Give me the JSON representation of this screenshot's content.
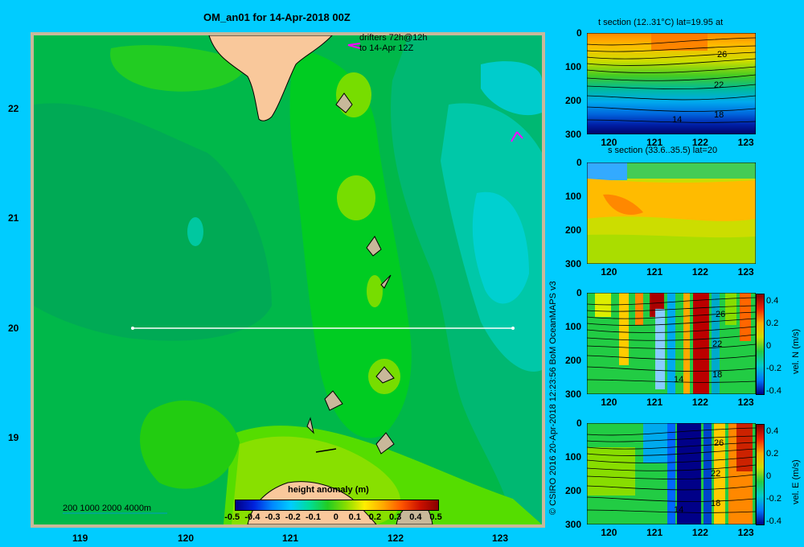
{
  "map": {
    "title": "OM_an01 for 14-Apr-2018 00Z",
    "drifter_note_1": "drifters 72h@12h",
    "drifter_note_2": "to 14-Apr 12Z",
    "depth_legend": "200  1000  2000  4000m",
    "colorbar_title": "height anomaly  (m)",
    "colorbar_labels": [
      "-0.5",
      "-0.4",
      "-0.3",
      "-0.2",
      "-0.1",
      "0",
      "0.1",
      "0.2",
      "0.3",
      "0.4",
      "0.5"
    ],
    "lon_ticks": [
      "119",
      "120",
      "121",
      "122",
      "123"
    ],
    "lat_ticks": [
      "22",
      "21",
      "20",
      "19"
    ],
    "section_line_lat": "20"
  },
  "credit": "© CSIRO 2016    20-Apr-2018 12:23:56 BoM OceanMAPS v3",
  "panels": [
    {
      "name": "t-section",
      "title": "t section (12..31°C) lat=19.95 at",
      "y_ticks": [
        "0",
        "100",
        "200",
        "300"
      ],
      "x_ticks": [
        "120",
        "121",
        "122",
        "123"
      ],
      "contour_labels": [
        "26",
        "22",
        "18",
        "14"
      ],
      "colorbar_label": "",
      "colorbar_ticks": []
    },
    {
      "name": "s-section",
      "title": "s section (33.6..35.5) lat=20",
      "y_ticks": [
        "0",
        "100",
        "200",
        "300"
      ],
      "x_ticks": [
        "120",
        "121",
        "122",
        "123"
      ],
      "contour_labels": [],
      "colorbar_label": "",
      "colorbar_ticks": []
    },
    {
      "name": "vel-n-section",
      "title": "",
      "y_ticks": [
        "0",
        "100",
        "200",
        "300"
      ],
      "x_ticks": [
        "120",
        "121",
        "122",
        "123"
      ],
      "contour_labels": [
        "26",
        "22",
        "18",
        "14"
      ],
      "colorbar_label": "vel. N (m/s)",
      "colorbar_ticks": [
        "0.4",
        "0.2",
        "0",
        "-0.2",
        "-0.4"
      ]
    },
    {
      "name": "vel-e-section",
      "title": "",
      "y_ticks": [
        "0",
        "100",
        "200",
        "300"
      ],
      "x_ticks": [
        "120",
        "121",
        "122",
        "123"
      ],
      "contour_labels": [
        "26",
        "22",
        "18",
        "14"
      ],
      "colorbar_label": "vel. E (m/s)",
      "colorbar_ticks": [
        "0.4",
        "0.2",
        "0",
        "-0.2",
        "-0.4"
      ]
    }
  ],
  "colors": {
    "background": "#00ccff",
    "land": "#f9c89b",
    "frame": "#c8b89a",
    "section_line": "#ffffff",
    "drifter": "#ff00ff"
  },
  "chart_data": [
    {
      "type": "heatmap",
      "title": "OM_an01 for 14-Apr-2018 00Z",
      "xlabel": "",
      "ylabel": "",
      "xlim": [
        118.5,
        123.5
      ],
      "ylim": [
        18.25,
        22.7
      ],
      "x_ticks": [
        119,
        120,
        121,
        122,
        123
      ],
      "y_ticks": [
        19,
        20,
        21,
        22
      ],
      "colorbar": {
        "label": "height anomaly (m)",
        "range": [
          -0.5,
          0.5
        ]
      },
      "section_line": {
        "lat": 20,
        "lon": [
          119.5,
          123.2
        ]
      }
    },
    {
      "type": "heatmap",
      "title": "t section (12..31°C) lat=19.95 at",
      "xlim": [
        119.5,
        123.2
      ],
      "ylim": [
        300,
        0
      ],
      "contour_levels": [
        26,
        22,
        18,
        14
      ]
    },
    {
      "type": "heatmap",
      "title": "s section (33.6..35.5) lat=20",
      "xlim": [
        119.5,
        123.2
      ],
      "ylim": [
        300,
        0
      ]
    },
    {
      "type": "heatmap",
      "title": "",
      "xlim": [
        119.5,
        123.2
      ],
      "ylim": [
        300,
        0
      ],
      "colorbar": {
        "label": "vel. N (m/s)",
        "range": [
          -0.4,
          0.4
        ]
      }
    },
    {
      "type": "heatmap",
      "title": "",
      "xlim": [
        119.5,
        123.2
      ],
      "ylim": [
        300,
        0
      ],
      "colorbar": {
        "label": "vel. E (m/s)",
        "range": [
          -0.4,
          0.4
        ]
      }
    }
  ]
}
